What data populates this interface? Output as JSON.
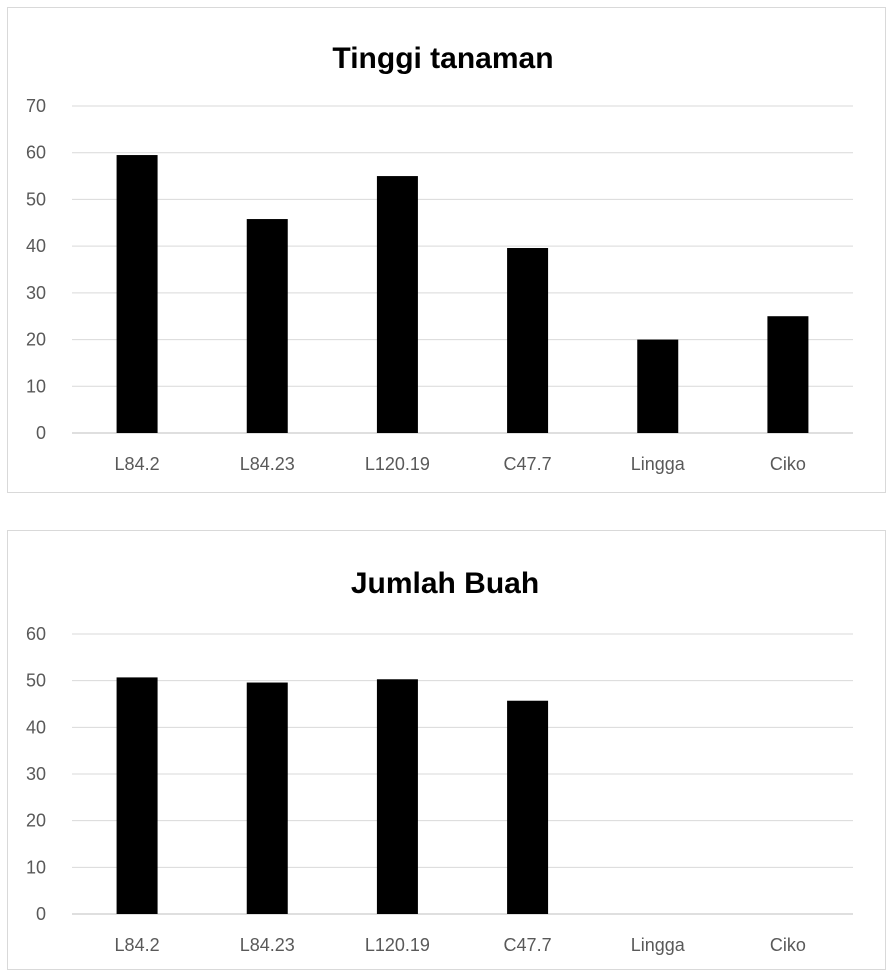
{
  "chart_data": [
    {
      "type": "bar",
      "title": "Tinggi tanaman",
      "categories": [
        "L84.2",
        "L84.23",
        "L120.19",
        "C47.7",
        "Lingga",
        "Ciko"
      ],
      "values": [
        59.5,
        45.8,
        55,
        39.6,
        20,
        25
      ],
      "ylim": [
        0,
        70
      ],
      "yticks": [
        "0",
        "10",
        "20",
        "30",
        "40",
        "50",
        "60",
        "70"
      ],
      "bar_color": "#000000",
      "grid": true,
      "legend": "none"
    },
    {
      "type": "bar",
      "title": "Jumlah Buah",
      "categories": [
        "L84.2",
        "L84.23",
        "L120.19",
        "C47.7",
        "Lingga",
        "Ciko"
      ],
      "values": [
        50.7,
        49.6,
        50.3,
        45.7,
        0,
        0
      ],
      "ylim": [
        0,
        60
      ],
      "yticks": [
        "0",
        "10",
        "20",
        "30",
        "40",
        "50",
        "60"
      ],
      "bar_color": "#000000",
      "grid": true,
      "legend": "none"
    }
  ]
}
